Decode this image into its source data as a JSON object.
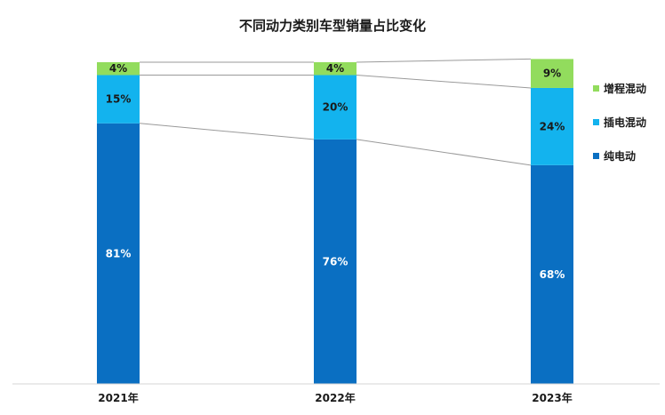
{
  "chart_data": {
    "type": "bar",
    "stacked": true,
    "percent": true,
    "title": "不同动力类别车型销量占比变化",
    "categories": [
      "2021年",
      "2022年",
      "2023年"
    ],
    "series": [
      {
        "name": "纯电动",
        "values": [
          81,
          76,
          68
        ],
        "labels": [
          "81%",
          "76%",
          "68%"
        ],
        "color": "#0a6fc2",
        "label_color": "#ffffff"
      },
      {
        "name": "插电混动",
        "values": [
          15,
          20,
          24
        ],
        "labels": [
          "15%",
          "20%",
          "24%"
        ],
        "color": "#13b3ee",
        "label_color": "#1a1a1a"
      },
      {
        "name": "增程混动",
        "values": [
          4,
          4,
          9
        ],
        "labels": [
          "4%",
          "4%",
          "9%"
        ],
        "color": "#92dc5d",
        "label_color": "#1a1a1a"
      }
    ],
    "ylim": [
      0,
      100
    ],
    "legend_position": "right",
    "connector_lines": true,
    "grid": false
  }
}
